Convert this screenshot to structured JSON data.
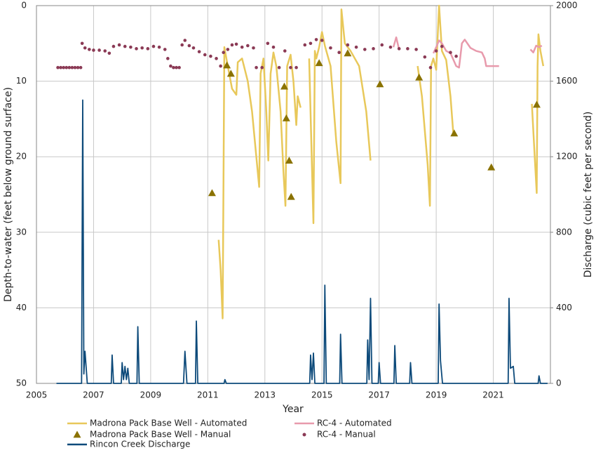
{
  "chart_data": {
    "type": "line",
    "x_label": "Year",
    "y_label": "Depth-to-water (feet below ground surface)",
    "y2_label": "Discharge (cubic feet per second)",
    "xlim": [
      2005,
      2023
    ],
    "xticks": [
      2005,
      2007,
      2009,
      2011,
      2013,
      2015,
      2017,
      2019,
      2021
    ],
    "ylim": [
      0,
      50
    ],
    "yticks": [
      0,
      10,
      20,
      30,
      40,
      50
    ],
    "y_inverted": true,
    "y2lim": [
      0,
      2000
    ],
    "y2ticks": [
      0,
      400,
      800,
      1200,
      1600,
      2000
    ],
    "grid": true,
    "legend_position": "bottom",
    "series": [
      {
        "name": "Madrona Pack Base Well - Automated",
        "style": "line",
        "color": "#e8c85a",
        "x": [
          2011.38,
          2011.45,
          2011.52,
          2011.58,
          2011.7,
          2011.85,
          2012.0,
          2012.05,
          2012.2,
          2012.4,
          2012.55,
          2012.7,
          2012.8,
          2012.85,
          2012.95,
          2013.05,
          2013.12,
          2013.2,
          2013.3,
          2013.4,
          2013.55,
          2013.65,
          2013.72,
          2013.78,
          2013.9,
          2014.0,
          2014.1,
          2014.15,
          2014.25,
          2014.4,
          2014.55,
          2014.7,
          2014.75,
          2014.8,
          2014.9,
          2015.0,
          2015.1,
          2015.3,
          2015.5,
          2015.65,
          2015.68,
          2015.8,
          2016.0,
          2016.3,
          2016.55,
          2016.7,
          2017.5,
          2018.35,
          2018.5,
          2018.7,
          2018.78,
          2018.82,
          2018.9,
          2019.0,
          2019.1,
          2019.2,
          2019.35,
          2019.5,
          2019.6,
          2020.5,
          2022.35,
          2022.45,
          2022.52,
          2022.55,
          2022.58,
          2022.65,
          2022.75
        ],
        "values": [
          31,
          35,
          41.4,
          5.5,
          8,
          11,
          11.8,
          7.5,
          7,
          10,
          14,
          20,
          24,
          9,
          7,
          14,
          20.5,
          9,
          6.2,
          8,
          14,
          22,
          26.5,
          8,
          6.5,
          10,
          15.8,
          12,
          13.5,
          null,
          7,
          28.8,
          6,
          7,
          5.5,
          3.5,
          5.3,
          8,
          18,
          23.5,
          0.5,
          5,
          6,
          8,
          14,
          20.5,
          null,
          8,
          12,
          21,
          26.5,
          8,
          7,
          8.5,
          0,
          6,
          7.2,
          12,
          17,
          null,
          13,
          20,
          24.8,
          8,
          3.8,
          6,
          8
        ]
      },
      {
        "name": "RC-4 - Automated",
        "style": "line",
        "color": "#e89aac",
        "x": [
          2017.5,
          2017.6,
          2017.7,
          2018.3,
          2018.9,
          2019.0,
          2019.1,
          2019.2,
          2019.35,
          2019.5,
          2019.7,
          2019.8,
          2019.9,
          2020.0,
          2020.2,
          2020.4,
          2020.6,
          2020.7,
          2020.75,
          2021.2,
          2021.8,
          2022.3,
          2022.4,
          2022.5,
          2022.6,
          2022.7
        ],
        "values": [
          5.5,
          4.2,
          5.8,
          null,
          6.3,
          5.5,
          4.6,
          5.0,
          6.0,
          6.3,
          8.0,
          8.2,
          5.0,
          4.5,
          5.6,
          6.0,
          6.2,
          7.0,
          8.0,
          8.0,
          null,
          5.8,
          6.2,
          5.3,
          5.5,
          5.3
        ]
      },
      {
        "name": "Madrona Pack Base Well - Manual",
        "style": "triangle",
        "color": "#8a7200",
        "x": [
          2011.15,
          2011.67,
          2011.81,
          2013.68,
          2013.75,
          2013.85,
          2013.92,
          2014.9,
          2015.9,
          2017.03,
          2018.4,
          2019.63,
          2020.93,
          2022.52
        ],
        "values": [
          24.8,
          7.9,
          9.0,
          10.7,
          14.9,
          20.5,
          25.3,
          7.6,
          6.3,
          10.4,
          9.5,
          16.9,
          21.4,
          13.1
        ]
      },
      {
        "name": "RC-4 - Manual",
        "style": "dot",
        "color": "#8b3a55",
        "x": [
          2005.75,
          2005.85,
          2005.95,
          2006.05,
          2006.15,
          2006.25,
          2006.35,
          2006.45,
          2006.55,
          2006.6,
          2006.7,
          2006.85,
          2007.0,
          2007.2,
          2007.4,
          2007.55,
          2007.7,
          2007.9,
          2008.1,
          2008.3,
          2008.5,
          2008.7,
          2008.9,
          2009.1,
          2009.3,
          2009.5,
          2009.6,
          2009.7,
          2009.8,
          2009.9,
          2010.0,
          2010.1,
          2010.2,
          2010.35,
          2010.5,
          2010.7,
          2010.9,
          2011.1,
          2011.3,
          2011.45,
          2011.55,
          2011.7,
          2011.85,
          2012.0,
          2012.2,
          2012.4,
          2012.6,
          2012.7,
          2012.9,
          2013.1,
          2013.3,
          2013.5,
          2013.7,
          2013.9,
          2014.1,
          2014.4,
          2014.6,
          2014.8,
          2015.0,
          2015.3,
          2015.6,
          2015.9,
          2016.2,
          2016.5,
          2016.8,
          2017.1,
          2017.4,
          2017.7,
          2018.0,
          2018.3,
          2018.6,
          2018.8,
          2019.0,
          2019.2,
          2019.5,
          2019.7
        ],
        "values": [
          8.2,
          8.2,
          8.2,
          8.2,
          8.2,
          8.2,
          8.2,
          8.2,
          8.2,
          5.0,
          5.6,
          5.8,
          5.9,
          5.9,
          6.0,
          6.3,
          5.4,
          5.2,
          5.4,
          5.5,
          5.7,
          5.6,
          5.7,
          5.4,
          5.5,
          5.8,
          7.0,
          8.0,
          8.2,
          8.2,
          8.2,
          5.2,
          4.6,
          5.3,
          5.6,
          6.1,
          6.5,
          6.7,
          7.0,
          8.0,
          6.2,
          5.8,
          5.2,
          5.1,
          5.5,
          5.3,
          5.6,
          8.2,
          8.2,
          5.0,
          5.5,
          8.2,
          6.0,
          8.2,
          8.2,
          5.2,
          5.0,
          4.5,
          4.6,
          5.6,
          6.2,
          5.2,
          5.5,
          5.8,
          5.7,
          5.2,
          5.5,
          5.7,
          5.7,
          5.8,
          6.8,
          8.2,
          6.0,
          5.4,
          6.2,
          6.7
        ]
      },
      {
        "name": "Rincon Creek Discharge",
        "style": "line",
        "color": "#0d4a7a",
        "axis": "y2",
        "x": [
          2005.7,
          2006.58,
          2006.62,
          2006.66,
          2006.7,
          2006.78,
          2007.62,
          2007.65,
          2007.7,
          2007.97,
          2008.0,
          2008.05,
          2008.1,
          2008.15,
          2008.2,
          2008.25,
          2008.52,
          2008.55,
          2008.6,
          2010.15,
          2010.2,
          2010.27,
          2010.57,
          2010.6,
          2010.65,
          2011.57,
          2011.6,
          2011.65,
          2014.57,
          2014.6,
          2014.65,
          2014.7,
          2014.75,
          2015.07,
          2015.1,
          2015.15,
          2015.62,
          2015.65,
          2015.7,
          2016.57,
          2016.6,
          2016.65,
          2016.7,
          2016.75,
          2016.97,
          2017.0,
          2017.05,
          2017.52,
          2017.55,
          2017.6,
          2018.07,
          2018.1,
          2018.15,
          2019.07,
          2019.1,
          2019.15,
          2019.22,
          2021.52,
          2021.55,
          2021.6,
          2021.7,
          2021.75,
          2022.57,
          2022.6,
          2022.65,
          2022.9
        ],
        "values": [
          0,
          0,
          1500,
          50,
          170,
          0,
          0,
          150,
          0,
          0,
          110,
          20,
          90,
          20,
          80,
          0,
          0,
          300,
          0,
          0,
          170,
          0,
          0,
          330,
          0,
          0,
          20,
          0,
          0,
          150,
          20,
          160,
          0,
          0,
          520,
          0,
          0,
          260,
          0,
          0,
          230,
          20,
          450,
          0,
          0,
          110,
          0,
          0,
          200,
          0,
          0,
          110,
          0,
          0,
          420,
          120,
          0,
          0,
          450,
          80,
          90,
          0,
          0,
          40,
          0,
          0
        ]
      }
    ]
  }
}
